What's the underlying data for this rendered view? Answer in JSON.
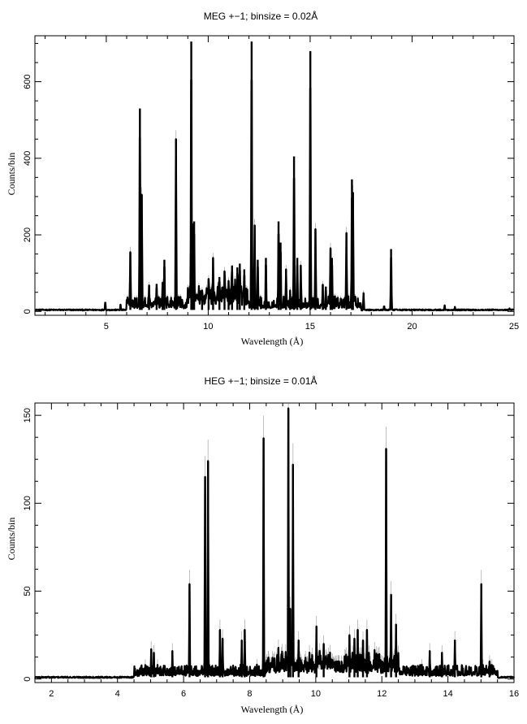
{
  "chart_data": [
    {
      "type": "line",
      "title": "MEG +−1; binsize = 0.02Å",
      "xlabel": "Wavelength (Å)",
      "ylabel": "Counts/bin",
      "xlim": [
        1.5,
        25
      ],
      "ylim": [
        -10,
        720
      ],
      "xticks": [
        5,
        10,
        15,
        20,
        25
      ],
      "yticks": [
        0,
        200,
        400,
        600
      ],
      "grid": false,
      "baseline": 4,
      "peaks": [
        {
          "x": 4.95,
          "y": 25
        },
        {
          "x": 5.7,
          "y": 18
        },
        {
          "x": 6.18,
          "y": 155
        },
        {
          "x": 6.65,
          "y": 530
        },
        {
          "x": 6.74,
          "y": 305
        },
        {
          "x": 7.1,
          "y": 68
        },
        {
          "x": 7.47,
          "y": 72
        },
        {
          "x": 7.76,
          "y": 75
        },
        {
          "x": 7.85,
          "y": 135
        },
        {
          "x": 8.42,
          "y": 450
        },
        {
          "x": 9.17,
          "y": 705
        },
        {
          "x": 9.23,
          "y": 230
        },
        {
          "x": 9.31,
          "y": 235
        },
        {
          "x": 9.7,
          "y": 55
        },
        {
          "x": 10.02,
          "y": 85
        },
        {
          "x": 10.24,
          "y": 140
        },
        {
          "x": 10.55,
          "y": 90
        },
        {
          "x": 10.8,
          "y": 105
        },
        {
          "x": 11.0,
          "y": 80
        },
        {
          "x": 11.17,
          "y": 120
        },
        {
          "x": 11.43,
          "y": 115
        },
        {
          "x": 11.55,
          "y": 125
        },
        {
          "x": 11.77,
          "y": 110
        },
        {
          "x": 12.13,
          "y": 705
        },
        {
          "x": 12.28,
          "y": 225
        },
        {
          "x": 12.43,
          "y": 135
        },
        {
          "x": 12.83,
          "y": 140
        },
        {
          "x": 13.45,
          "y": 235
        },
        {
          "x": 13.55,
          "y": 180
        },
        {
          "x": 13.82,
          "y": 110
        },
        {
          "x": 14.02,
          "y": 55
        },
        {
          "x": 14.21,
          "y": 405
        },
        {
          "x": 14.37,
          "y": 140
        },
        {
          "x": 14.54,
          "y": 120
        },
        {
          "x": 15.01,
          "y": 680
        },
        {
          "x": 15.26,
          "y": 215
        },
        {
          "x": 15.62,
          "y": 70
        },
        {
          "x": 15.77,
          "y": 65
        },
        {
          "x": 16.0,
          "y": 165
        },
        {
          "x": 16.07,
          "y": 140
        },
        {
          "x": 16.78,
          "y": 205
        },
        {
          "x": 17.05,
          "y": 345
        },
        {
          "x": 17.1,
          "y": 310
        },
        {
          "x": 17.62,
          "y": 48
        },
        {
          "x": 18.63,
          "y": 15
        },
        {
          "x": 18.97,
          "y": 163
        },
        {
          "x": 21.6,
          "y": 16
        },
        {
          "x": 22.1,
          "y": 12
        },
        {
          "x": 24.78,
          "y": 8
        }
      ],
      "noise": [
        {
          "from": 6.0,
          "to": 17.5,
          "amplitude": 35
        },
        {
          "from": 9.0,
          "to": 12.0,
          "amplitude": 50
        }
      ]
    },
    {
      "type": "line",
      "title": "HEG +−1; binsize = 0.01Å",
      "xlabel": "Wavelength (Å)",
      "ylabel": "Counts/bin",
      "xlim": [
        1.5,
        16
      ],
      "ylim": [
        -2,
        157
      ],
      "xticks": [
        2,
        4,
        6,
        8,
        10,
        12,
        14,
        16
      ],
      "yticks": [
        0,
        50,
        100,
        150
      ],
      "grid": false,
      "baseline": 1,
      "peaks": [
        {
          "x": 5.02,
          "y": 17
        },
        {
          "x": 5.1,
          "y": 15
        },
        {
          "x": 5.66,
          "y": 16
        },
        {
          "x": 6.18,
          "y": 54
        },
        {
          "x": 6.65,
          "y": 115
        },
        {
          "x": 6.74,
          "y": 124
        },
        {
          "x": 7.1,
          "y": 28
        },
        {
          "x": 7.18,
          "y": 23
        },
        {
          "x": 7.76,
          "y": 22
        },
        {
          "x": 7.85,
          "y": 28
        },
        {
          "x": 8.42,
          "y": 137
        },
        {
          "x": 9.17,
          "y": 154
        },
        {
          "x": 9.23,
          "y": 40
        },
        {
          "x": 9.31,
          "y": 122
        },
        {
          "x": 9.48,
          "y": 22
        },
        {
          "x": 10.02,
          "y": 30
        },
        {
          "x": 10.24,
          "y": 20
        },
        {
          "x": 11.02,
          "y": 25
        },
        {
          "x": 11.17,
          "y": 23
        },
        {
          "x": 11.27,
          "y": 28
        },
        {
          "x": 11.43,
          "y": 22
        },
        {
          "x": 11.55,
          "y": 28
        },
        {
          "x": 12.13,
          "y": 131
        },
        {
          "x": 12.28,
          "y": 48
        },
        {
          "x": 12.43,
          "y": 31
        },
        {
          "x": 13.45,
          "y": 16
        },
        {
          "x": 13.82,
          "y": 15
        },
        {
          "x": 14.21,
          "y": 22
        },
        {
          "x": 15.01,
          "y": 54
        },
        {
          "x": 15.26,
          "y": 10
        }
      ],
      "noise": [
        {
          "from": 4.5,
          "to": 15.5,
          "amplitude": 7
        },
        {
          "from": 8.5,
          "to": 12.5,
          "amplitude": 10
        }
      ]
    }
  ]
}
